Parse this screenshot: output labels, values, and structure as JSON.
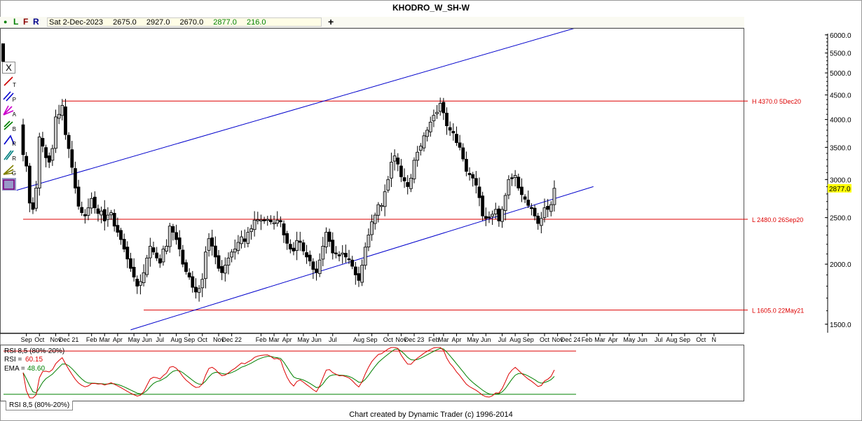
{
  "app": {
    "title": "KHODRO_W_SH-W",
    "footer": "Chart created by Dynamic Trader  (c) 1996-2014"
  },
  "topbar": {
    "buttons": [
      "L",
      "F",
      "R"
    ],
    "colors": {
      "L": "#008000",
      "F": "#8b0000",
      "R": "#00008b"
    },
    "quote": [
      "Sat 2-Dec-2023",
      "2675.0",
      "2927.0",
      "2670.0",
      "2877.0",
      "216.0"
    ],
    "quote_colors": [
      "#000000",
      "#000000",
      "#000000",
      "#000000",
      "#008000",
      "#008000"
    ],
    "plus": "+"
  },
  "toolbar": {
    "close_label": "X",
    "tools": [
      {
        "icon": "trendline-icon",
        "sub": "T",
        "color": "#cc0000"
      },
      {
        "icon": "parallel-lines-icon",
        "sub": "P",
        "color": "#0000cc"
      },
      {
        "icon": "andrews-pitchfork-icon",
        "sub": "A",
        "color": "#cc00cc"
      },
      {
        "icon": "fib-b-icon",
        "sub": "B",
        "color": "#008000"
      },
      {
        "icon": "ratio-icon",
        "sub": "R",
        "color": "#0000cc"
      },
      {
        "icon": "ratio-channel-icon",
        "sub": "R",
        "color": "#008080"
      },
      {
        "icon": "gann-fan-icon",
        "sub": "G",
        "color": "#808000"
      },
      {
        "icon": "pattern-icon",
        "sub": "",
        "color": "#800080"
      }
    ]
  },
  "chart_data": {
    "type": "candlestick",
    "title": "KHODRO_W_SH-W",
    "y_axis": {
      "scale": "log",
      "ticks": [
        1500,
        2000,
        2500,
        3000,
        3500,
        4000,
        4500,
        5000,
        5500,
        6000
      ],
      "tick_labels": [
        "1500.0",
        "2000.0",
        "2500.0",
        "3000.0",
        "3500.0",
        "4000.0",
        "4500.0",
        "5000.0",
        "5500.0",
        "6000.0"
      ],
      "ylim": [
        1440,
        6200
      ],
      "current_price_label": "2877.0",
      "current_price": 2877.0
    },
    "x_axis": {
      "labels": [
        "Sep",
        "Oct",
        "Nov",
        "Dec 21",
        "Feb",
        "Mar",
        "Apr",
        "May",
        "Jun",
        "Jul",
        "Aug",
        "Sep",
        "Oct",
        "Nov",
        "Dec 22",
        "Feb",
        "Mar",
        "Apr",
        "May",
        "Jun",
        "Jul",
        "Aug",
        "Sep",
        "Oct",
        "Nov",
        "Dec 23",
        "Feb",
        "Mar",
        "Apr",
        "May",
        "Jun",
        "Jul",
        "Aug",
        "Sep",
        "Oct",
        "Nov",
        "Dec 24",
        "Feb",
        "Mar",
        "Apr",
        "May",
        "Jun",
        "Jul",
        "Aug",
        "Sep",
        "Oct",
        "N"
      ],
      "label_week_index": [
        1,
        5,
        10,
        14,
        21,
        25,
        29,
        34,
        38,
        42,
        47,
        51,
        55,
        60,
        64,
        73,
        77,
        81,
        86,
        90,
        95,
        103,
        107,
        112,
        116,
        120,
        126,
        129,
        133,
        138,
        142,
        147,
        151,
        155,
        160,
        164,
        168,
        173,
        177,
        181,
        186,
        190,
        195,
        199,
        203,
        208,
        212
      ]
    },
    "weeks_shown": 214,
    "candles": {
      "first_week": 0,
      "last_week": 162,
      "close": [
        3380,
        3200,
        2680,
        2600,
        2880,
        3680,
        3520,
        3330,
        3260,
        3480,
        4050,
        4100,
        4280,
        3720,
        3480,
        3180,
        2880,
        2640,
        2560,
        2520,
        2620,
        2740,
        2620,
        2550,
        2580,
        2460,
        2530,
        2560,
        2400,
        2330,
        2250,
        2150,
        2050,
        1960,
        1880,
        1800,
        1840,
        1920,
        2060,
        2180,
        2120,
        2060,
        2010,
        2150,
        2180,
        2400,
        2330,
        2250,
        2150,
        2000,
        1930,
        1880,
        1790,
        1750,
        1780,
        1860,
        2120,
        2260,
        2180,
        2070,
        1960,
        1920,
        1990,
        2060,
        2120,
        2150,
        2220,
        2280,
        2230,
        2330,
        2370,
        2470,
        2470,
        2470,
        2470,
        2470,
        2450,
        2430,
        2470,
        2450,
        2300,
        2210,
        2150,
        2130,
        2240,
        2220,
        2130,
        2070,
        2030,
        1950,
        1920,
        2040,
        2180,
        2330,
        2230,
        2110,
        2110,
        2080,
        2110,
        2070,
        2050,
        1980,
        1900,
        1850,
        1990,
        2170,
        2300,
        2450,
        2530,
        2660,
        2640,
        2830,
        3000,
        3260,
        3360,
        3230,
        3040,
        2980,
        2900,
        3020,
        3290,
        3420,
        3520,
        3700,
        3800,
        3950,
        4080,
        4140,
        4320,
        4130,
        3880,
        3800,
        3750,
        3580,
        3500,
        3310,
        3120,
        3070,
        3020,
        2920,
        2750,
        2520,
        2490,
        2500,
        2540,
        2600,
        2460,
        2600,
        2780,
        3000,
        3020,
        3060,
        2880,
        2790,
        2730,
        2650,
        2610,
        2520,
        2430,
        2490,
        2620,
        2600,
        2660,
        2877
      ]
    },
    "annotations": [
      {
        "text": "H 4370.0 5Dec20",
        "level": 4370.0,
        "color": "#dd0000"
      },
      {
        "text": "L 2480.0 26Sep20",
        "level": 2480.0,
        "color": "#dd0000"
      },
      {
        "text": "L 1605.0 22May21",
        "level": 1605.0,
        "color": "#dd0000"
      }
    ],
    "trend_channel": {
      "color": "#0000cc",
      "upper_line": [
        {
          "week": -2,
          "price": 2850
        },
        {
          "week": 173,
          "price": 6300
        }
      ],
      "lower_line": [
        {
          "week": 33,
          "price": 1460
        },
        {
          "week": 175,
          "price": 2900
        }
      ]
    },
    "rsi_panel": {
      "legend_title": "RSI 8,5 (80%-20%)",
      "rsi_label": "RSI =",
      "rsi_value": "60.15",
      "ema_label": "EMA =",
      "ema_value": "48.60",
      "rsi_color": "#dd0000",
      "ema_color": "#008000",
      "overbought": 80,
      "oversold": 20,
      "ylim": [
        15,
        85
      ],
      "tab_label": "RSI 8,5 (80%-20%)"
    }
  }
}
